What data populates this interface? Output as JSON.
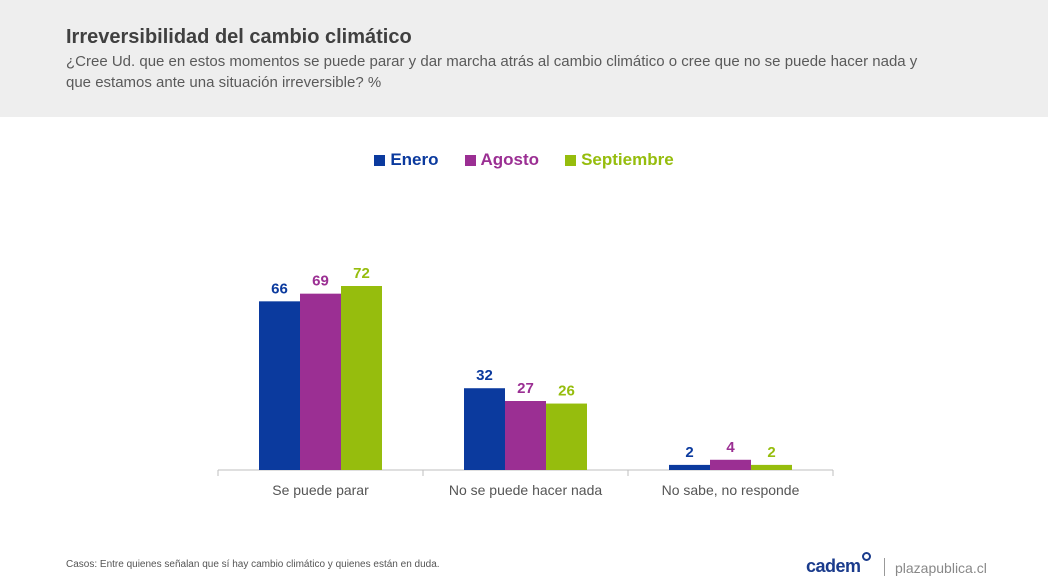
{
  "header": {
    "title": "Irreversibilidad del cambio climático",
    "subtitle": "¿Cree Ud. que en estos momentos se puede parar y dar marcha atrás al cambio climático o cree que no se puede hacer nada y que estamos ante una situación irreversible? %"
  },
  "chart_data": {
    "type": "bar",
    "title": "Irreversibilidad del cambio climático",
    "categories": [
      "Se puede parar",
      "No se puede hacer nada",
      "No sabe, no responde"
    ],
    "series": [
      {
        "name": "Enero",
        "color": "#0b3a9e",
        "values": [
          66,
          32,
          2
        ]
      },
      {
        "name": "Agosto",
        "color": "#9b2f93",
        "values": [
          69,
          27,
          4
        ]
      },
      {
        "name": "Septiembre",
        "color": "#96bd0d",
        "values": [
          72,
          26,
          2
        ]
      }
    ],
    "ylim": [
      0,
      72
    ],
    "grid": false,
    "legend_position": "top-center",
    "data_labels": true
  },
  "footer": {
    "note": "Casos: Entre quienes señalan que sí hay cambio climático y quienes están en duda.",
    "logo_text": "cadem",
    "site": "plazapublica.cl"
  }
}
